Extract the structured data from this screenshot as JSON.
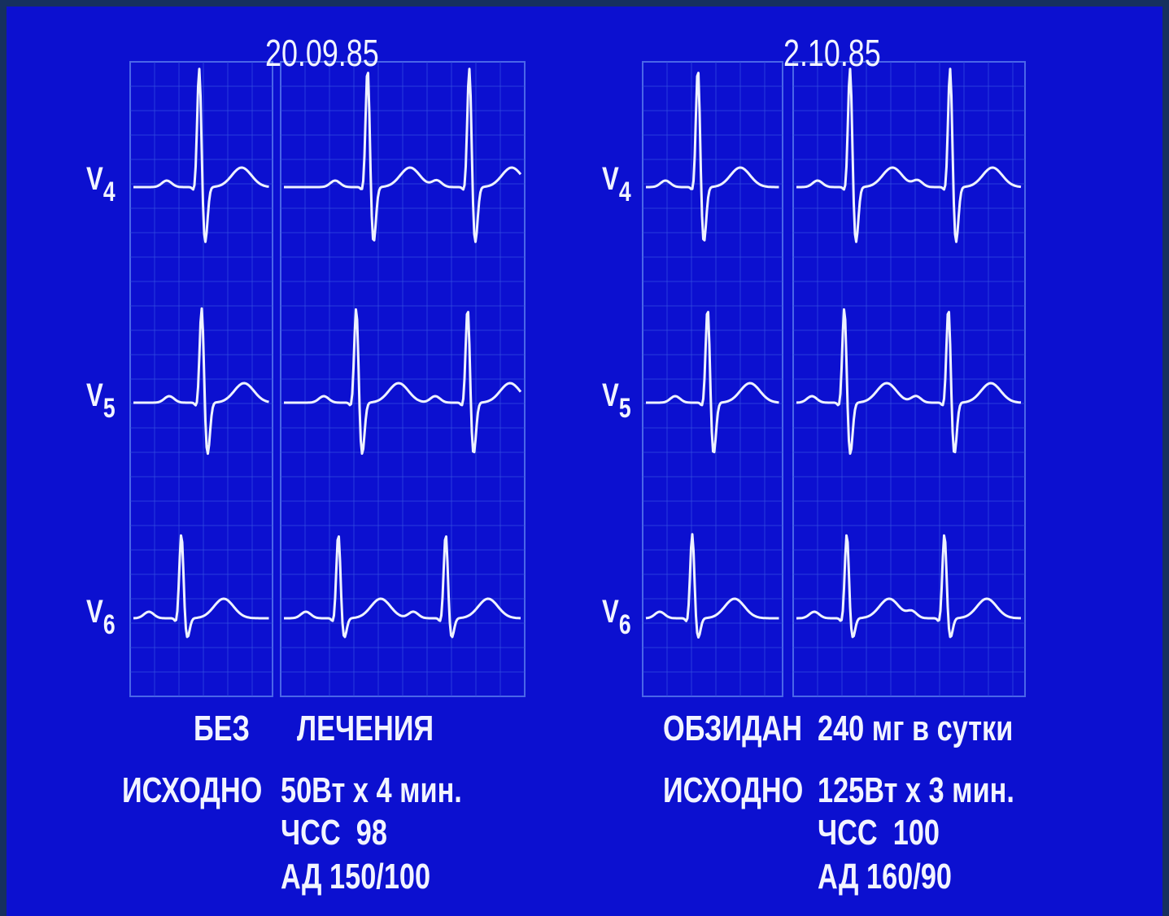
{
  "panels": [
    {
      "date": "20.09.85",
      "leads": [
        {
          "letter": "V",
          "sub": "4"
        },
        {
          "letter": "V",
          "sub": "5"
        },
        {
          "letter": "V",
          "sub": "6"
        }
      ],
      "treatment": [
        "БЕЗ",
        "ЛЕЧЕНИЯ"
      ],
      "baseline_label": "ИСХОДНО",
      "load": "50Вт x 4 мин.",
      "heart_rate": "ЧСС  98",
      "blood_pressure": "АД 150/100"
    },
    {
      "date": "2.10.85",
      "leads": [
        {
          "letter": "V",
          "sub": "4"
        },
        {
          "letter": "V",
          "sub": "5"
        },
        {
          "letter": "V",
          "sub": "6"
        }
      ],
      "treatment": [
        "ОБЗИДАН",
        "240 мг в сутки"
      ],
      "baseline_label": "ИСХОДНО",
      "load": "125Вт x 3 мин.",
      "heart_rate": "ЧСС  100",
      "blood_pressure": "АД 160/90"
    }
  ]
}
